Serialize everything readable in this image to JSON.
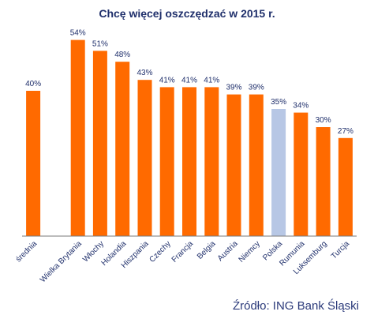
{
  "chart_data": {
    "type": "bar",
    "title": "Chcę więcej oszczędzać w 2015 r.",
    "categories": [
      "średnia",
      "",
      "Wielka Brytania",
      "Włochy",
      "Holandia",
      "Hiszpania",
      "Czechy",
      "Francja",
      "Belgia",
      "Austria",
      "Niemcy",
      "Polska",
      "Rumunia",
      "Luksemburg",
      "Turcja"
    ],
    "values": [
      40,
      null,
      54,
      51,
      48,
      43,
      41,
      41,
      41,
      39,
      39,
      35,
      34,
      30,
      27
    ],
    "data_labels": [
      "40%",
      "",
      "54%",
      "51%",
      "48%",
      "43%",
      "41%",
      "41%",
      "41%",
      "39%",
      "39%",
      "35%",
      "34%",
      "30%",
      "27%"
    ],
    "highlight_category": "Polska",
    "colors": {
      "bar": "#ff6a00",
      "highlight": "#b7c7e5",
      "axis": "#7a7a7a",
      "text": "#1f2f6b"
    },
    "ylim": [
      0,
      60
    ],
    "grid": false,
    "legend": "none",
    "source": "Źródło: ING Bank Śląski"
  }
}
